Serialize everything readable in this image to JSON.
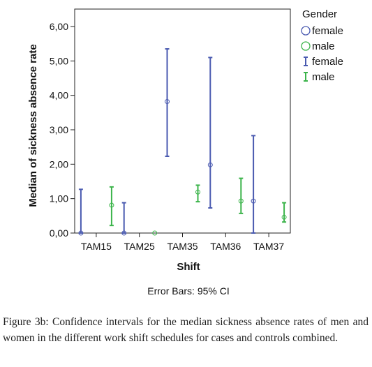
{
  "chart_data": {
    "type": "error-bar",
    "ylabel": "Median of sickness absence rate",
    "xlabel": "Shift",
    "categories": [
      "TAM15",
      "TAM25",
      "TAM35",
      "TAM36",
      "TAM37"
    ],
    "yticks": [
      "0,00",
      "1,00",
      "2,00",
      "3,00",
      "4,00",
      "5,00",
      "6,00"
    ],
    "ylim": [
      0,
      6.0
    ],
    "series": [
      {
        "name": "female",
        "color": "#4a5ab0",
        "marker": "circle",
        "points": [
          {
            "x": "TAM15",
            "median": 0.0,
            "lower": 0.0,
            "upper": 1.27
          },
          {
            "x": "TAM25",
            "median": 0.0,
            "lower": 0.0,
            "upper": 0.88
          },
          {
            "x": "TAM35",
            "median": 3.82,
            "lower": 2.23,
            "upper": 5.35
          },
          {
            "x": "TAM36",
            "median": 1.98,
            "lower": 0.73,
            "upper": 5.1
          },
          {
            "x": "TAM37",
            "median": 0.93,
            "lower": 0.0,
            "upper": 2.83
          }
        ]
      },
      {
        "name": "male",
        "color": "#3cb44b",
        "marker": "circle",
        "points": [
          {
            "x": "TAM15",
            "median": 0.81,
            "lower": 0.22,
            "upper": 1.34
          },
          {
            "x": "TAM25",
            "median": 0.0,
            "lower": 0.0,
            "upper": 0.0
          },
          {
            "x": "TAM35",
            "median": 1.19,
            "lower": 0.91,
            "upper": 1.39
          },
          {
            "x": "TAM36",
            "median": 0.93,
            "lower": 0.57,
            "upper": 1.59
          },
          {
            "x": "TAM37",
            "median": 0.46,
            "lower": 0.32,
            "upper": 0.88
          }
        ]
      }
    ],
    "legend": {
      "title": "Gender",
      "position": "top-right",
      "entries": [
        {
          "label": "female",
          "kind": "marker",
          "series": "female"
        },
        {
          "label": "male",
          "kind": "marker",
          "series": "male"
        },
        {
          "label": "female",
          "kind": "errorbar",
          "series": "female"
        },
        {
          "label": "male",
          "kind": "errorbar",
          "series": "male"
        }
      ]
    },
    "note": "Error Bars: 95% CI",
    "grid": false
  },
  "caption": {
    "label": "Figure 3b:",
    "text": "Confidence intervals for the median sickness absence rates of men and women in the different work shift schedules for cases and controls combined."
  }
}
